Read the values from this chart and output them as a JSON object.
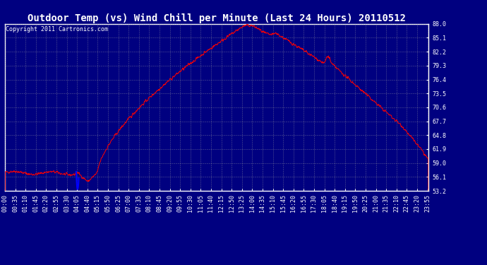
{
  "title": "Outdoor Temp (vs) Wind Chill per Minute (Last 24 Hours) 20110512",
  "copyright": "Copyright 2011 Cartronics.com",
  "bg_color": "#000080",
  "plot_bg_color": "#000080",
  "line_color_red": "#ff0000",
  "line_color_blue": "#0000ff",
  "grid_color": "#aaaaaa",
  "text_color": "#ffffff",
  "tick_color": "#ffffff",
  "border_color": "#ffffff",
  "ymin": 53.2,
  "ymax": 88.0,
  "yticks": [
    88.0,
    85.1,
    82.2,
    79.3,
    76.4,
    73.5,
    70.6,
    67.7,
    64.8,
    61.9,
    59.0,
    56.1,
    53.2
  ],
  "xtick_labels": [
    "00:00",
    "00:35",
    "01:10",
    "01:45",
    "02:20",
    "02:55",
    "03:30",
    "04:05",
    "04:40",
    "05:15",
    "05:50",
    "06:25",
    "07:00",
    "07:35",
    "08:10",
    "08:45",
    "09:20",
    "09:55",
    "10:30",
    "11:05",
    "11:40",
    "12:15",
    "12:50",
    "13:25",
    "14:00",
    "14:35",
    "15:10",
    "15:45",
    "16:20",
    "16:55",
    "17:30",
    "18:05",
    "18:40",
    "19:15",
    "19:50",
    "20:25",
    "21:00",
    "21:35",
    "22:10",
    "22:45",
    "23:20",
    "23:55"
  ],
  "title_fontsize": 10,
  "copyright_fontsize": 6,
  "tick_fontsize": 6,
  "figsize": [
    6.9,
    3.75
  ],
  "dpi": 100
}
